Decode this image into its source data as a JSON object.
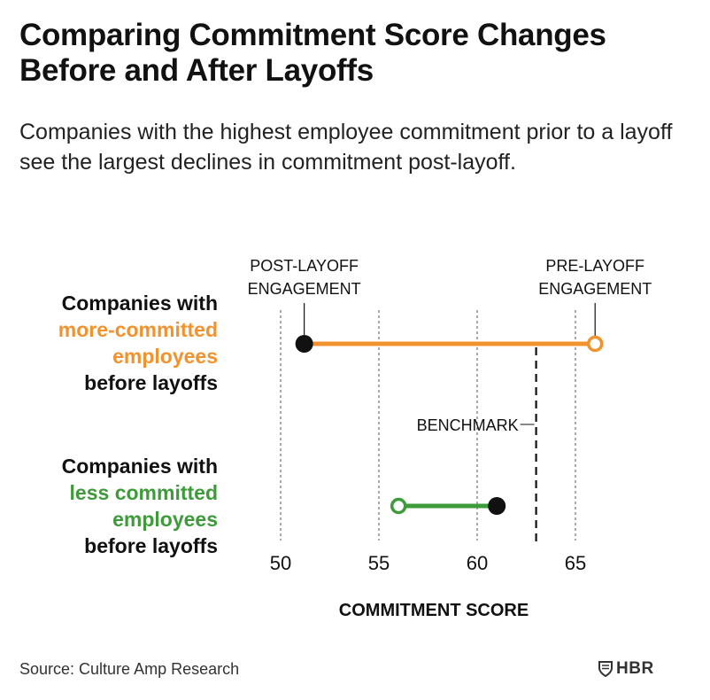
{
  "title": "Comparing Commitment Score Changes Before and After Layoffs",
  "subtitle": "Companies with the highest employee commitment prior to a layoff see the largest declines in commitment post-layoff.",
  "groups": [
    {
      "line1": "Companies with",
      "accent_line1": "more-committed",
      "accent_line2": "employees",
      "line4": "before layoffs"
    },
    {
      "line1": "Companies with",
      "accent_line1": "less committed",
      "accent_line2": "employees",
      "line4": "before layoffs"
    }
  ],
  "source": "Source: Culture Amp Research",
  "logo_text": "HBR",
  "colors": {
    "more_committed": "#F0922E",
    "less_committed": "#3E9A3A",
    "text": "#111111",
    "grid": "#555555"
  },
  "chart_data": {
    "type": "dumbbell",
    "xlabel": "COMMITMENT SCORE",
    "xlim": [
      50,
      65
    ],
    "xticks": [
      50,
      55,
      60,
      65
    ],
    "benchmark": {
      "value": 63,
      "label": "BENCHMARK"
    },
    "annotations": {
      "post": [
        "POST-LAYOFF",
        "ENGAGEMENT"
      ],
      "pre": [
        "PRE-LAYOFF",
        "ENGAGEMENT"
      ]
    },
    "series": [
      {
        "name": "Companies with more-committed employees before layoffs",
        "pre": 66,
        "post": 51.2,
        "color": "#F0922E"
      },
      {
        "name": "Companies with less committed employees before layoffs",
        "pre": 56,
        "post": 61,
        "color": "#3E9A3A"
      }
    ]
  }
}
